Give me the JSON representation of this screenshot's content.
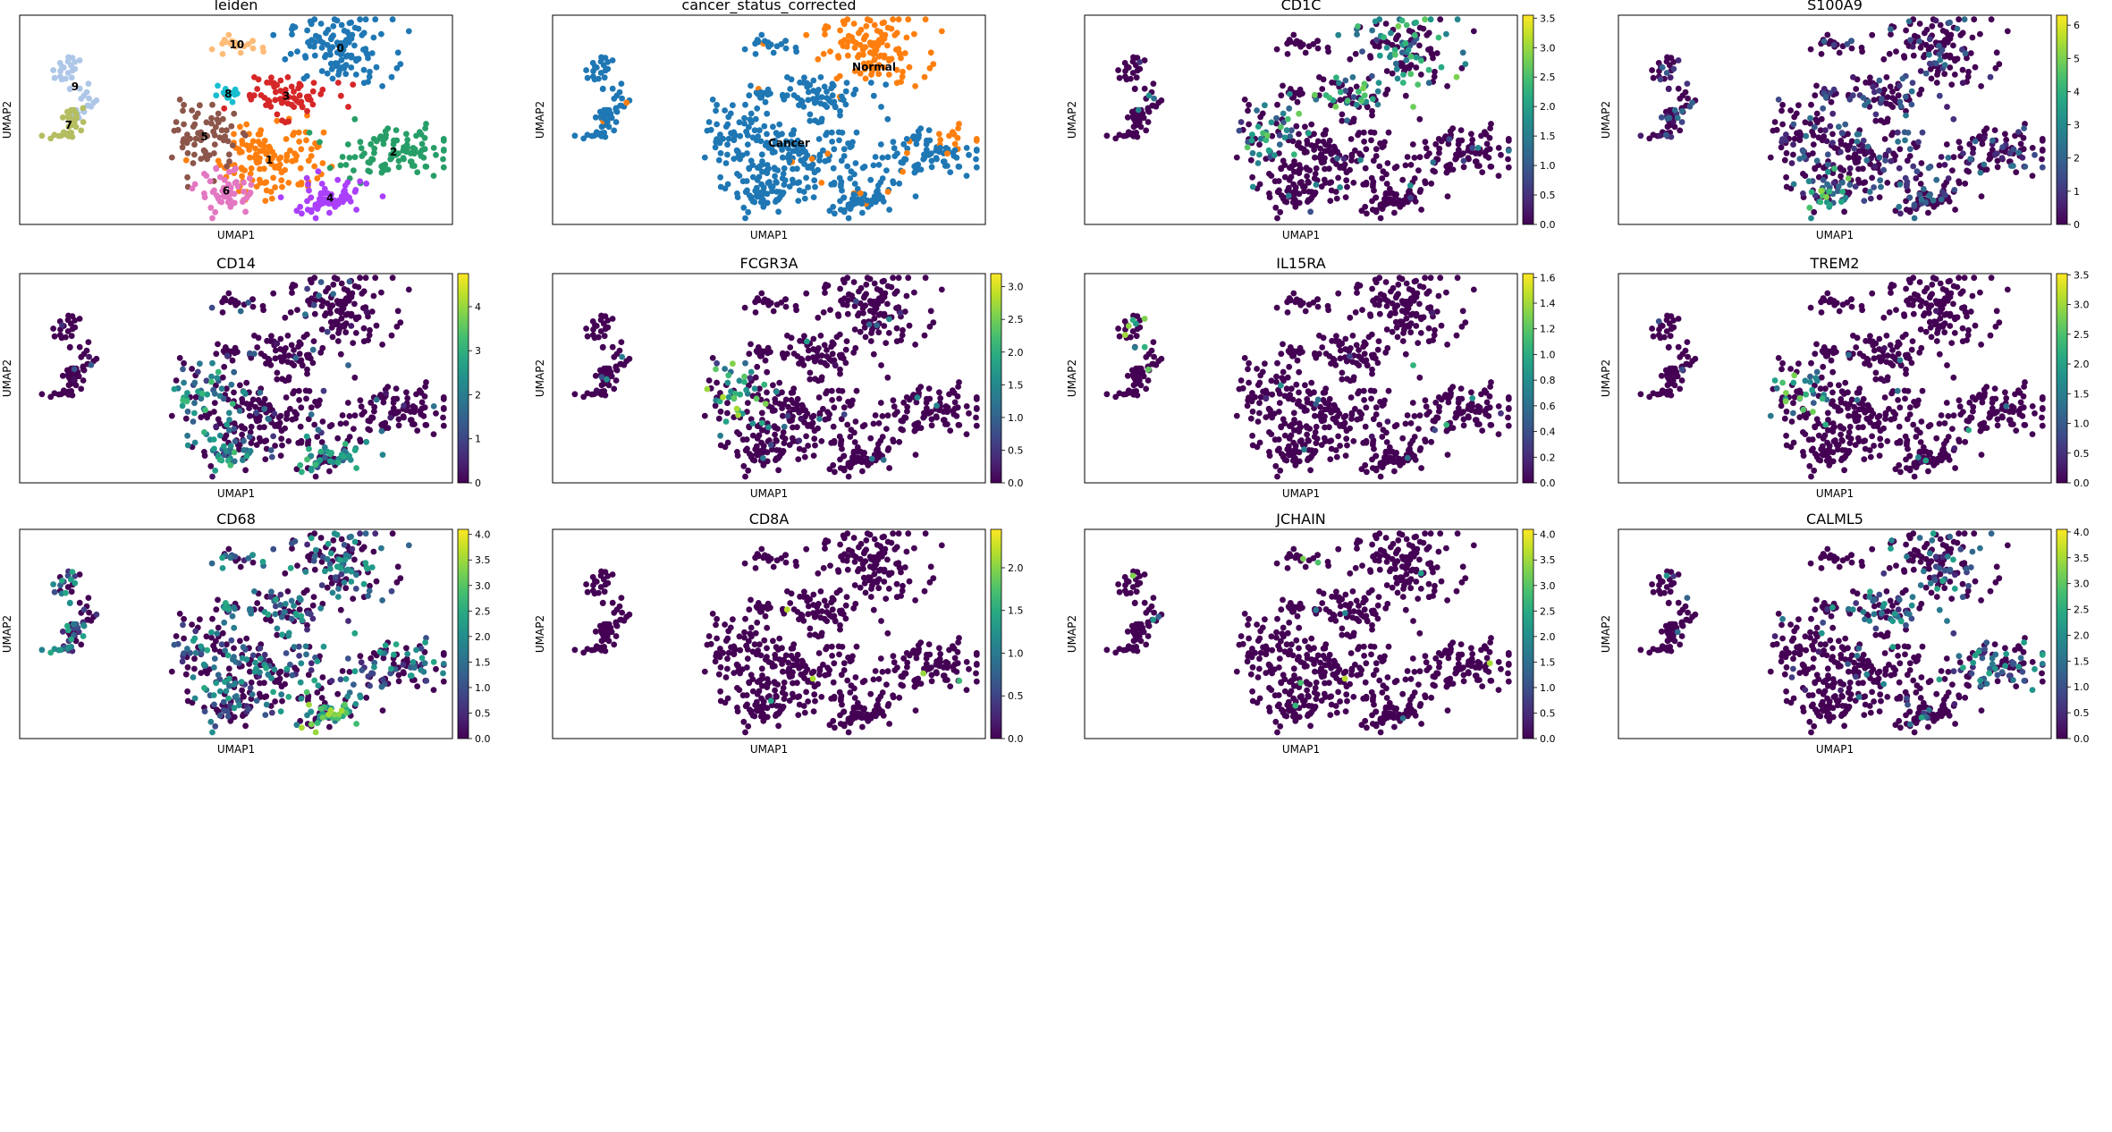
{
  "figure": {
    "xlabel": "UMAP1",
    "ylabel": "UMAP2"
  },
  "chart_data": [
    {
      "type": "scatter",
      "title": "leiden",
      "color_mode": "categorical",
      "xlabel": "UMAP1",
      "ylabel": "UMAP2",
      "legend": "on-data",
      "categories": [
        {
          "label": "0",
          "color": "#1f77b4"
        },
        {
          "label": "1",
          "color": "#ff7f0e"
        },
        {
          "label": "2",
          "color": "#279e68"
        },
        {
          "label": "3",
          "color": "#d62728"
        },
        {
          "label": "4",
          "color": "#aa40fc"
        },
        {
          "label": "5",
          "color": "#8c564b"
        },
        {
          "label": "6",
          "color": "#e377c2"
        },
        {
          "label": "7",
          "color": "#b5bd61"
        },
        {
          "label": "8",
          "color": "#17becf"
        },
        {
          "label": "9",
          "color": "#aec7e8"
        },
        {
          "label": "10",
          "color": "#ffbb78"
        }
      ]
    },
    {
      "type": "scatter",
      "title": "cancer_status_corrected",
      "color_mode": "categorical",
      "xlabel": "UMAP1",
      "ylabel": "UMAP2",
      "legend": "on-data",
      "categories": [
        {
          "label": "Cancer",
          "color": "#1f77b4"
        },
        {
          "label": "Normal",
          "color": "#ff7f0e"
        }
      ]
    },
    {
      "type": "scatter",
      "title": "CD1C",
      "color_mode": "continuous",
      "colormap": "viridis",
      "xlabel": "UMAP1",
      "ylabel": "UMAP2",
      "colorbar_ticks": [
        "0.0",
        "0.5",
        "1.0",
        "1.5",
        "2.0",
        "2.5",
        "3.0",
        "3.5"
      ],
      "vmax": 3.55
    },
    {
      "type": "scatter",
      "title": "S100A9",
      "color_mode": "continuous",
      "colormap": "viridis",
      "xlabel": "UMAP1",
      "ylabel": "UMAP2",
      "colorbar_ticks": [
        "0",
        "1",
        "2",
        "3",
        "4",
        "5",
        "6"
      ],
      "vmax": 6.3
    },
    {
      "type": "scatter",
      "title": "CD14",
      "color_mode": "continuous",
      "colormap": "viridis",
      "xlabel": "UMAP1",
      "ylabel": "UMAP2",
      "colorbar_ticks": [
        "0",
        "1",
        "2",
        "3",
        "4"
      ],
      "vmax": 4.75
    },
    {
      "type": "scatter",
      "title": "FCGR3A",
      "color_mode": "continuous",
      "colormap": "viridis",
      "xlabel": "UMAP1",
      "ylabel": "UMAP2",
      "colorbar_ticks": [
        "0.0",
        "0.5",
        "1.0",
        "1.5",
        "2.0",
        "2.5",
        "3.0"
      ],
      "vmax": 3.2
    },
    {
      "type": "scatter",
      "title": "IL15RA",
      "color_mode": "continuous",
      "colormap": "viridis",
      "xlabel": "UMAP1",
      "ylabel": "UMAP2",
      "colorbar_ticks": [
        "0.0",
        "0.2",
        "0.4",
        "0.6",
        "0.8",
        "1.0",
        "1.2",
        "1.4",
        "1.6"
      ],
      "vmax": 1.63
    },
    {
      "type": "scatter",
      "title": "TREM2",
      "color_mode": "continuous",
      "colormap": "viridis",
      "xlabel": "UMAP1",
      "ylabel": "UMAP2",
      "colorbar_ticks": [
        "0.0",
        "0.5",
        "1.0",
        "1.5",
        "2.0",
        "2.5",
        "3.0",
        "3.5"
      ],
      "vmax": 3.52
    },
    {
      "type": "scatter",
      "title": "CD68",
      "color_mode": "continuous",
      "colormap": "viridis",
      "xlabel": "UMAP1",
      "ylabel": "UMAP2",
      "colorbar_ticks": [
        "0.0",
        "0.5",
        "1.0",
        "1.5",
        "2.0",
        "2.5",
        "3.0",
        "3.5",
        "4.0"
      ],
      "vmax": 4.1
    },
    {
      "type": "scatter",
      "title": "CD8A",
      "color_mode": "continuous",
      "colormap": "viridis",
      "xlabel": "UMAP1",
      "ylabel": "UMAP2",
      "colorbar_ticks": [
        "0.0",
        "0.5",
        "1.0",
        "1.5",
        "2.0"
      ],
      "vmax": 2.45
    },
    {
      "type": "scatter",
      "title": "JCHAIN",
      "color_mode": "continuous",
      "colormap": "viridis",
      "xlabel": "UMAP1",
      "ylabel": "UMAP2",
      "colorbar_ticks": [
        "0.0",
        "0.5",
        "1.0",
        "1.5",
        "2.0",
        "2.5",
        "3.0",
        "3.5",
        "4.0"
      ],
      "vmax": 4.1
    },
    {
      "type": "scatter",
      "title": "CALML5",
      "color_mode": "continuous",
      "colormap": "viridis",
      "xlabel": "UMAP1",
      "ylabel": "UMAP2",
      "colorbar_ticks": [
        "0.0",
        "0.5",
        "1.0",
        "1.5",
        "2.0",
        "2.5",
        "3.0",
        "3.5",
        "4.0"
      ],
      "vmax": 4.05
    }
  ]
}
